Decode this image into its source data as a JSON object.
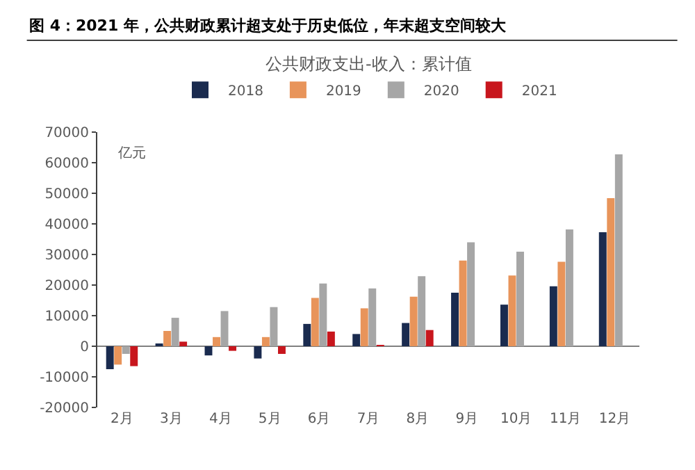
{
  "chart_data": {
    "type": "bar",
    "title": "图 4：2021 年，公共财政累计超支处于历史低位，年末超支空间较大",
    "subtitle": "公共财政支出-收入：累计值",
    "ylabel": "亿元",
    "categories": [
      "2月",
      "3月",
      "4月",
      "5月",
      "6月",
      "7月",
      "8月",
      "9月",
      "10月",
      "11月",
      "12月"
    ],
    "series": [
      {
        "name": "2018",
        "color": "#1a2b4f",
        "values": [
          -7500,
          500,
          -3000,
          -4000,
          7300,
          4000,
          7600,
          17500,
          13600,
          19600,
          37300
        ]
      },
      {
        "name": "2019",
        "color": "#e8945a",
        "values": [
          -6000,
          5000,
          3000,
          3000,
          15800,
          12400,
          16200,
          28000,
          23100,
          27600,
          48400
        ]
      },
      {
        "name": "2020",
        "color": "#a6a6a6",
        "values": [
          -2500,
          9300,
          11500,
          12800,
          20500,
          18900,
          22900,
          34000,
          30900,
          38200,
          62700
        ]
      },
      {
        "name": "2021",
        "color": "#c8161d",
        "values": [
          -6500,
          1500,
          -1500,
          -2500,
          4800,
          300,
          5300,
          null,
          null,
          null,
          null
        ]
      }
    ],
    "ylim": [
      -20000,
      70000
    ],
    "yticks": [
      -20000,
      -10000,
      0,
      10000,
      20000,
      30000,
      40000,
      50000,
      60000,
      70000
    ],
    "legend": "top"
  }
}
